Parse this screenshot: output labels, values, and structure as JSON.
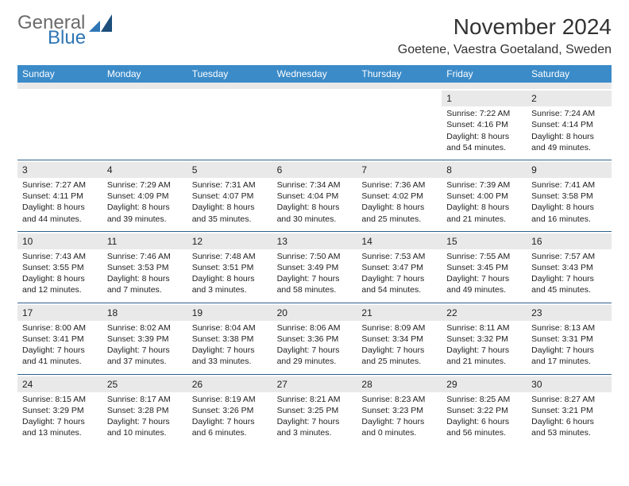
{
  "logo": {
    "line1": "General",
    "line2": "Blue"
  },
  "header": {
    "title": "November 2024",
    "location": "Goetene, Vaestra Goetaland, Sweden"
  },
  "colors": {
    "header_bar": "#3b8bc9",
    "header_text": "#ffffff",
    "daynum_bg": "#e9e9e9",
    "divider": "#2f5f8a",
    "logo_gray": "#6b6b6b",
    "logo_blue": "#2f76b6"
  },
  "daynames": [
    "Sunday",
    "Monday",
    "Tuesday",
    "Wednesday",
    "Thursday",
    "Friday",
    "Saturday"
  ],
  "weeks": [
    [
      {
        "day": "",
        "sunrise": "",
        "sunset": "",
        "daylight": ""
      },
      {
        "day": "",
        "sunrise": "",
        "sunset": "",
        "daylight": ""
      },
      {
        "day": "",
        "sunrise": "",
        "sunset": "",
        "daylight": ""
      },
      {
        "day": "",
        "sunrise": "",
        "sunset": "",
        "daylight": ""
      },
      {
        "day": "",
        "sunrise": "",
        "sunset": "",
        "daylight": ""
      },
      {
        "day": "1",
        "sunrise": "Sunrise: 7:22 AM",
        "sunset": "Sunset: 4:16 PM",
        "daylight": "Daylight: 8 hours and 54 minutes."
      },
      {
        "day": "2",
        "sunrise": "Sunrise: 7:24 AM",
        "sunset": "Sunset: 4:14 PM",
        "daylight": "Daylight: 8 hours and 49 minutes."
      }
    ],
    [
      {
        "day": "3",
        "sunrise": "Sunrise: 7:27 AM",
        "sunset": "Sunset: 4:11 PM",
        "daylight": "Daylight: 8 hours and 44 minutes."
      },
      {
        "day": "4",
        "sunrise": "Sunrise: 7:29 AM",
        "sunset": "Sunset: 4:09 PM",
        "daylight": "Daylight: 8 hours and 39 minutes."
      },
      {
        "day": "5",
        "sunrise": "Sunrise: 7:31 AM",
        "sunset": "Sunset: 4:07 PM",
        "daylight": "Daylight: 8 hours and 35 minutes."
      },
      {
        "day": "6",
        "sunrise": "Sunrise: 7:34 AM",
        "sunset": "Sunset: 4:04 PM",
        "daylight": "Daylight: 8 hours and 30 minutes."
      },
      {
        "day": "7",
        "sunrise": "Sunrise: 7:36 AM",
        "sunset": "Sunset: 4:02 PM",
        "daylight": "Daylight: 8 hours and 25 minutes."
      },
      {
        "day": "8",
        "sunrise": "Sunrise: 7:39 AM",
        "sunset": "Sunset: 4:00 PM",
        "daylight": "Daylight: 8 hours and 21 minutes."
      },
      {
        "day": "9",
        "sunrise": "Sunrise: 7:41 AM",
        "sunset": "Sunset: 3:58 PM",
        "daylight": "Daylight: 8 hours and 16 minutes."
      }
    ],
    [
      {
        "day": "10",
        "sunrise": "Sunrise: 7:43 AM",
        "sunset": "Sunset: 3:55 PM",
        "daylight": "Daylight: 8 hours and 12 minutes."
      },
      {
        "day": "11",
        "sunrise": "Sunrise: 7:46 AM",
        "sunset": "Sunset: 3:53 PM",
        "daylight": "Daylight: 8 hours and 7 minutes."
      },
      {
        "day": "12",
        "sunrise": "Sunrise: 7:48 AM",
        "sunset": "Sunset: 3:51 PM",
        "daylight": "Daylight: 8 hours and 3 minutes."
      },
      {
        "day": "13",
        "sunrise": "Sunrise: 7:50 AM",
        "sunset": "Sunset: 3:49 PM",
        "daylight": "Daylight: 7 hours and 58 minutes."
      },
      {
        "day": "14",
        "sunrise": "Sunrise: 7:53 AM",
        "sunset": "Sunset: 3:47 PM",
        "daylight": "Daylight: 7 hours and 54 minutes."
      },
      {
        "day": "15",
        "sunrise": "Sunrise: 7:55 AM",
        "sunset": "Sunset: 3:45 PM",
        "daylight": "Daylight: 7 hours and 49 minutes."
      },
      {
        "day": "16",
        "sunrise": "Sunrise: 7:57 AM",
        "sunset": "Sunset: 3:43 PM",
        "daylight": "Daylight: 7 hours and 45 minutes."
      }
    ],
    [
      {
        "day": "17",
        "sunrise": "Sunrise: 8:00 AM",
        "sunset": "Sunset: 3:41 PM",
        "daylight": "Daylight: 7 hours and 41 minutes."
      },
      {
        "day": "18",
        "sunrise": "Sunrise: 8:02 AM",
        "sunset": "Sunset: 3:39 PM",
        "daylight": "Daylight: 7 hours and 37 minutes."
      },
      {
        "day": "19",
        "sunrise": "Sunrise: 8:04 AM",
        "sunset": "Sunset: 3:38 PM",
        "daylight": "Daylight: 7 hours and 33 minutes."
      },
      {
        "day": "20",
        "sunrise": "Sunrise: 8:06 AM",
        "sunset": "Sunset: 3:36 PM",
        "daylight": "Daylight: 7 hours and 29 minutes."
      },
      {
        "day": "21",
        "sunrise": "Sunrise: 8:09 AM",
        "sunset": "Sunset: 3:34 PM",
        "daylight": "Daylight: 7 hours and 25 minutes."
      },
      {
        "day": "22",
        "sunrise": "Sunrise: 8:11 AM",
        "sunset": "Sunset: 3:32 PM",
        "daylight": "Daylight: 7 hours and 21 minutes."
      },
      {
        "day": "23",
        "sunrise": "Sunrise: 8:13 AM",
        "sunset": "Sunset: 3:31 PM",
        "daylight": "Daylight: 7 hours and 17 minutes."
      }
    ],
    [
      {
        "day": "24",
        "sunrise": "Sunrise: 8:15 AM",
        "sunset": "Sunset: 3:29 PM",
        "daylight": "Daylight: 7 hours and 13 minutes."
      },
      {
        "day": "25",
        "sunrise": "Sunrise: 8:17 AM",
        "sunset": "Sunset: 3:28 PM",
        "daylight": "Daylight: 7 hours and 10 minutes."
      },
      {
        "day": "26",
        "sunrise": "Sunrise: 8:19 AM",
        "sunset": "Sunset: 3:26 PM",
        "daylight": "Daylight: 7 hours and 6 minutes."
      },
      {
        "day": "27",
        "sunrise": "Sunrise: 8:21 AM",
        "sunset": "Sunset: 3:25 PM",
        "daylight": "Daylight: 7 hours and 3 minutes."
      },
      {
        "day": "28",
        "sunrise": "Sunrise: 8:23 AM",
        "sunset": "Sunset: 3:23 PM",
        "daylight": "Daylight: 7 hours and 0 minutes."
      },
      {
        "day": "29",
        "sunrise": "Sunrise: 8:25 AM",
        "sunset": "Sunset: 3:22 PM",
        "daylight": "Daylight: 6 hours and 56 minutes."
      },
      {
        "day": "30",
        "sunrise": "Sunrise: 8:27 AM",
        "sunset": "Sunset: 3:21 PM",
        "daylight": "Daylight: 6 hours and 53 minutes."
      }
    ]
  ]
}
